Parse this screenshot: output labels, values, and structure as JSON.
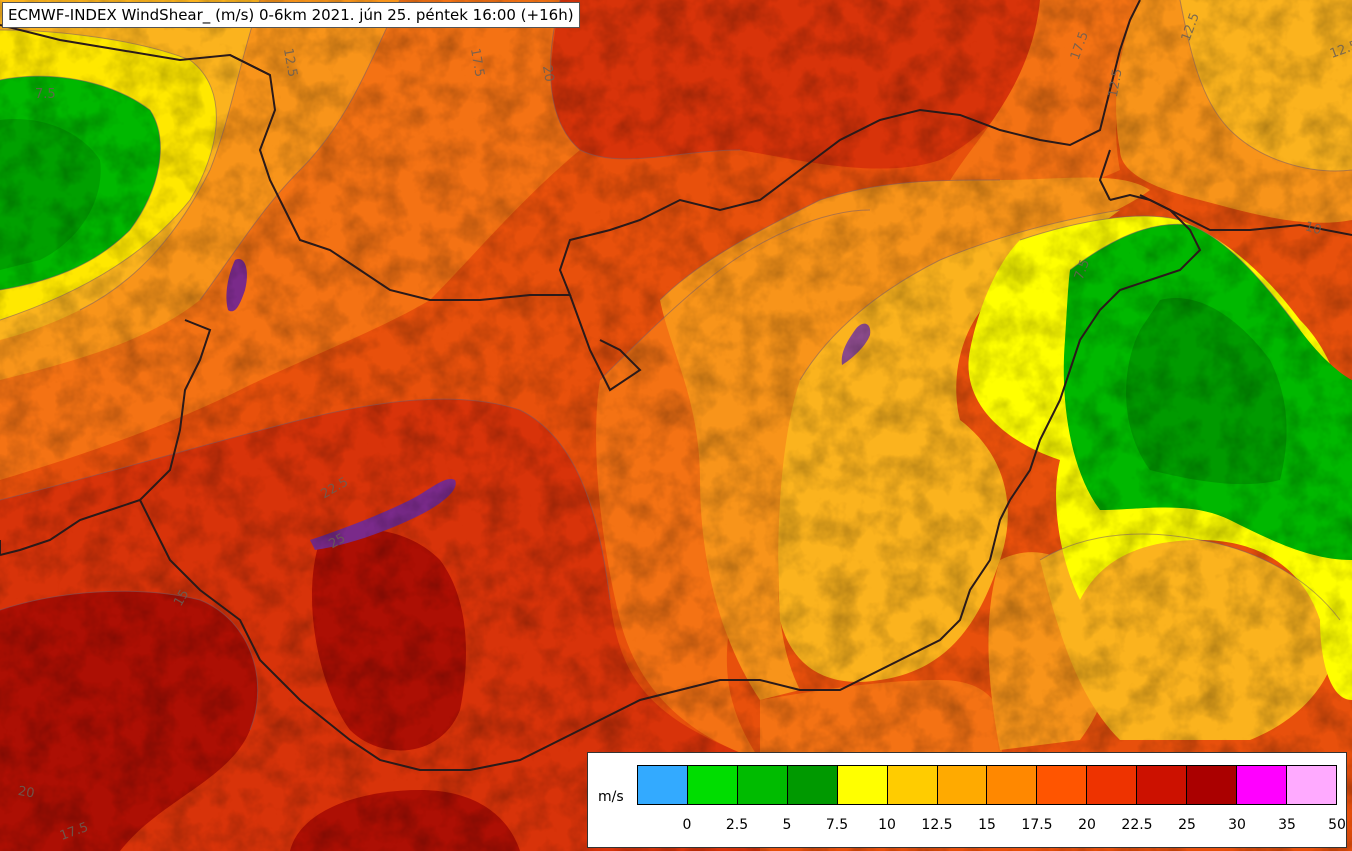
{
  "title": "ECMWF-INDEX WindShear_ (m/s) 0-6km 2021. jún 25. péntek 16:00 (+16h)",
  "legend": {
    "unit": "m/s",
    "colors": [
      "#33aaff",
      "#00dd00",
      "#00bb00",
      "#009900",
      "#ffff00",
      "#ffcc00",
      "#ffaa00",
      "#ff8800",
      "#ff5500",
      "#ee3300",
      "#cc1100",
      "#aa0000",
      "#ff00ff",
      "#ffaaff"
    ],
    "ticks": [
      "0",
      "2.5",
      "5",
      "7.5",
      "10",
      "12.5",
      "15",
      "17.5",
      "20",
      "22.5",
      "25",
      "30",
      "35",
      "50"
    ]
  },
  "contour_labels": [
    "12.5",
    "17.5",
    "20",
    "12.5",
    "17.5",
    "12.5",
    "7.5",
    "12.5",
    "10",
    "7.5",
    "22.5",
    "25",
    "15",
    "20",
    "17.5"
  ]
}
